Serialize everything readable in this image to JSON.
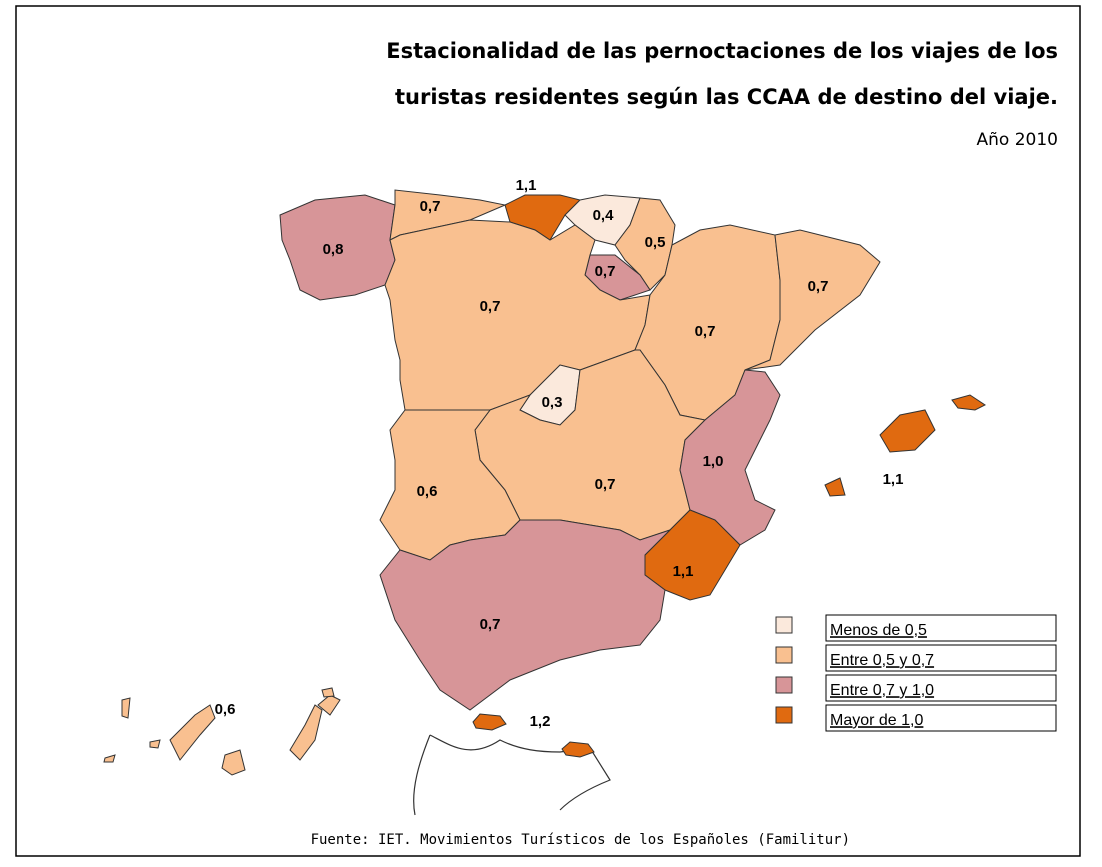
{
  "header": {
    "title_lines": [
      "Estacionalidad de las pernoctaciones de los viajes de los",
      "turistas residentes según las CCAA de destino del viaje."
    ],
    "subtitle": "Año 2010"
  },
  "regions": [
    {
      "label": "0,8",
      "color": "#d79598"
    },
    {
      "label": "0,7",
      "color": "#f9c090"
    },
    {
      "label": "1,1",
      "color": "#e06a10"
    },
    {
      "label": "0,4",
      "color": "#fbe9dc"
    },
    {
      "label": "0,5",
      "color": "#f9c090"
    },
    {
      "label": "0,7",
      "color": "#d79598"
    },
    {
      "label": "0,7",
      "color": "#f9c090"
    },
    {
      "label": "0,7",
      "color": "#f9c090"
    },
    {
      "label": "0,7",
      "color": "#f9c090"
    },
    {
      "label": "0,3",
      "color": "#fbe9dc"
    },
    {
      "label": "0,7",
      "color": "#f9c090"
    },
    {
      "label": "0,6",
      "color": "#f9c090"
    },
    {
      "label": "1,0",
      "color": "#d79598"
    },
    {
      "label": "1,1",
      "color": "#e06a10"
    },
    {
      "label": "0,7",
      "color": "#d79598"
    },
    {
      "label": "1,1",
      "color": "#e06a10"
    },
    {
      "label": "0,6",
      "color": "#f9c090"
    },
    {
      "label": "1,2",
      "color": "#e06a10"
    }
  ],
  "legend": [
    {
      "label": "Menos de 0,5",
      "color": "#fbe9dc"
    },
    {
      "label": "Entre 0,5 y 0,7",
      "color": "#f9c090"
    },
    {
      "label": "Entre 0,7 y 1,0",
      "color": "#d79598"
    },
    {
      "label": "Mayor de 1,0",
      "color": "#e06a10"
    }
  ],
  "source": "Fuente: IET. Movimientos Turísticos de los Españoles (Familitur)"
}
